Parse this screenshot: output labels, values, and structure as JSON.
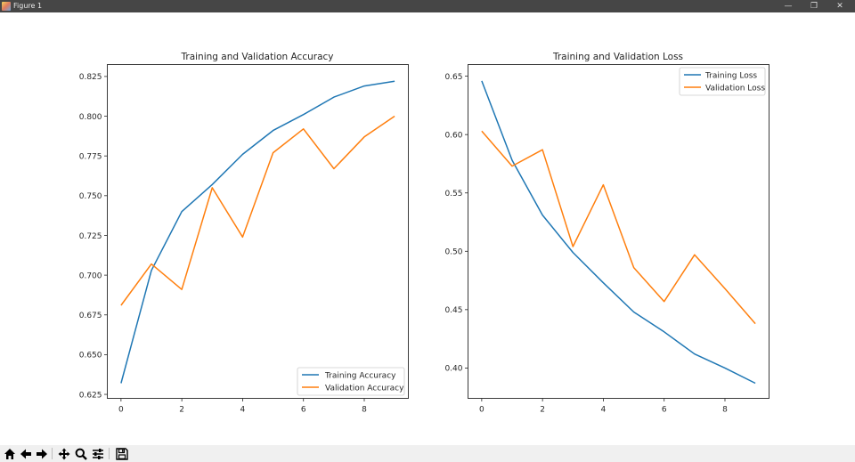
{
  "window": {
    "title": "Figure 1",
    "controls": [
      "minimize",
      "restore",
      "close"
    ]
  },
  "toolbar": {
    "buttons": [
      {
        "name": "home",
        "icon": "home-icon"
      },
      {
        "name": "back",
        "icon": "arrow-left-icon"
      },
      {
        "name": "forward",
        "icon": "arrow-right-icon"
      },
      {
        "name": "pan",
        "icon": "move-icon"
      },
      {
        "name": "zoom",
        "icon": "magnifier-icon"
      },
      {
        "name": "configure-subplots",
        "icon": "sliders-icon"
      },
      {
        "name": "save",
        "icon": "floppy-disk-icon"
      }
    ]
  },
  "colors": {
    "training": "#1f77b4",
    "validation": "#ff7f0e",
    "titlebar": "#464646",
    "toolbar": "#f0f0f0"
  },
  "chart_data": [
    {
      "type": "line",
      "title": "Training and Validation Accuracy",
      "xlabel": "",
      "ylabel": "",
      "x": [
        0,
        1,
        2,
        3,
        4,
        5,
        6,
        7,
        8,
        9
      ],
      "xticks": [
        "0",
        "2",
        "4",
        "6",
        "8"
      ],
      "yticks": [
        "0.625",
        "0.650",
        "0.675",
        "0.700",
        "0.725",
        "0.750",
        "0.775",
        "0.800",
        "0.825"
      ],
      "xlim": [
        -0.45,
        9.45
      ],
      "ylim": [
        0.6225,
        0.8325
      ],
      "grid": false,
      "legend_position": "lower right",
      "series": [
        {
          "name": "Training Accuracy",
          "color": "#1f77b4",
          "values": [
            0.632,
            0.703,
            0.74,
            0.757,
            0.776,
            0.791,
            0.801,
            0.812,
            0.819,
            0.822
          ]
        },
        {
          "name": "Validation Accuracy",
          "color": "#ff7f0e",
          "values": [
            0.681,
            0.707,
            0.691,
            0.755,
            0.724,
            0.777,
            0.792,
            0.767,
            0.787,
            0.8
          ]
        }
      ]
    },
    {
      "type": "line",
      "title": "Training and Validation Loss",
      "xlabel": "",
      "ylabel": "",
      "x": [
        0,
        1,
        2,
        3,
        4,
        5,
        6,
        7,
        8,
        9
      ],
      "xticks": [
        "0",
        "2",
        "4",
        "6",
        "8"
      ],
      "yticks": [
        "0.40",
        "0.45",
        "0.50",
        "0.55",
        "0.60",
        "0.65"
      ],
      "xlim": [
        -0.45,
        9.45
      ],
      "ylim": [
        0.374,
        0.66
      ],
      "grid": false,
      "legend_position": "upper right",
      "series": [
        {
          "name": "Training Loss",
          "color": "#1f77b4",
          "values": [
            0.646,
            0.578,
            0.531,
            0.499,
            0.473,
            0.448,
            0.431,
            0.412,
            0.4,
            0.387
          ]
        },
        {
          "name": "Validation Loss",
          "color": "#ff7f0e",
          "values": [
            0.603,
            0.573,
            0.587,
            0.504,
            0.557,
            0.486,
            0.457,
            0.497,
            0.468,
            0.438
          ]
        }
      ]
    }
  ]
}
